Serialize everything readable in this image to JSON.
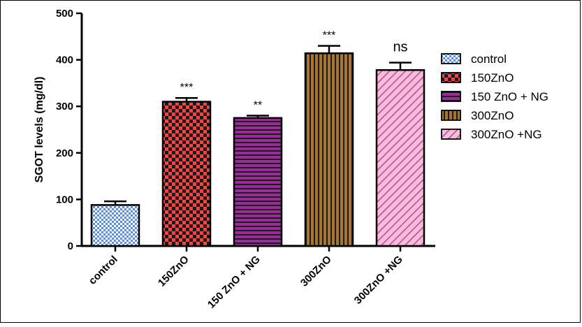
{
  "chart_data": {
    "type": "bar",
    "title": "",
    "xlabel": "",
    "ylabel": "SGOT levels (mg/dl)",
    "ylim": [
      0,
      500
    ],
    "yticks": [
      0,
      100,
      200,
      300,
      400,
      500
    ],
    "grid": false,
    "legend_position": "right",
    "categories": [
      "control",
      "150ZnO",
      "150 ZnO + NG",
      "300ZnO",
      "300ZnO +NG"
    ],
    "values": [
      88,
      310,
      275,
      414,
      378
    ],
    "errors": [
      8,
      8,
      5,
      16,
      16
    ],
    "significance": [
      "",
      "***",
      "**",
      "***",
      "ns"
    ],
    "legend": [
      "control",
      "150ZnO",
      "150 ZnO + NG",
      "300ZnO",
      "300ZnO +NG"
    ],
    "colors": [
      "#6fa4e8",
      "#ff4040",
      "#8b1a8b",
      "#9a6a2a",
      "#f4a8d0"
    ],
    "patterns": [
      "checker-small",
      "checker-large",
      "horizontal-stripes",
      "vertical-stripes",
      "diagonal-stripes"
    ]
  }
}
